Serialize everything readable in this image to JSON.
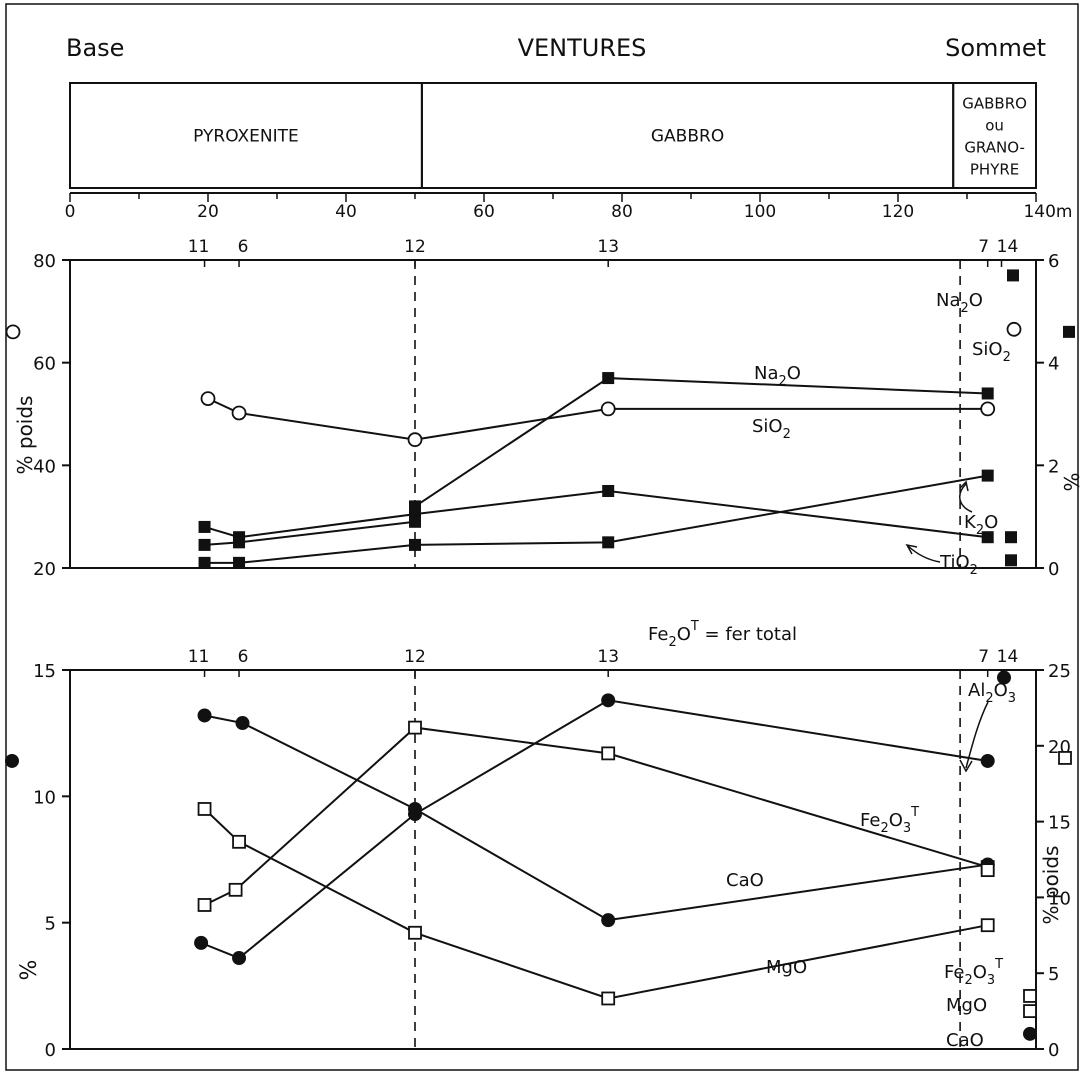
{
  "header": {
    "left": "Base",
    "center": "VENTURES",
    "right": "Sommet"
  },
  "units": [
    {
      "label_lines": [
        "PYROXENITE"
      ],
      "from_m": 0,
      "to_m": 51
    },
    {
      "label_lines": [
        "GABBRO"
      ],
      "from_m": 51,
      "to_m": 128
    },
    {
      "label_lines": [
        "GABBRO",
        "ou",
        "GRANO-",
        "PHYRE"
      ],
      "from_m": 128,
      "to_m": 140
    }
  ],
  "depth_axis": {
    "ticks": [
      0,
      20,
      40,
      60,
      80,
      100,
      120,
      140
    ],
    "tick_labels": [
      "0",
      "20",
      "40",
      "60",
      "80",
      "100",
      "120",
      "140m"
    ]
  },
  "samples": [
    {
      "label": "11",
      "m": 19.5
    },
    {
      "label": "6",
      "m": 24.5
    },
    {
      "label": "12",
      "m": 50
    },
    {
      "label": "13",
      "m": 78
    },
    {
      "label": "7",
      "m": 133
    },
    {
      "label": "14",
      "m": 135
    }
  ],
  "boundaries_m": [
    51,
    129
  ],
  "chart_data": [
    {
      "type": "line",
      "x_unit": "m",
      "xlim": [
        0,
        140
      ],
      "ylabel_left": "% poids",
      "ylim_left": [
        20,
        80
      ],
      "yticks_left": [
        20,
        40,
        60,
        80
      ],
      "ylabel_right": "%",
      "ylim_right": [
        0,
        6
      ],
      "yticks_right": [
        0,
        2,
        4,
        6
      ],
      "series": [
        {
          "name": "SiO2",
          "axis": "left",
          "marker": "open-circle",
          "x": [
            20,
            24.5,
            50,
            78,
            133
          ],
          "y": [
            53,
            50.2,
            45,
            51,
            51
          ],
          "outside_value": 66,
          "label_sub": {
            "base": "SiO",
            "sub": "2"
          }
        },
        {
          "name": "Na2O",
          "axis": "right",
          "marker": "filled-square",
          "x": [
            50,
            78,
            133
          ],
          "y": [
            1.2,
            3.7,
            3.4
          ],
          "outside_value": 4.6,
          "label_sub": {
            "base": "Na",
            "sub": "2",
            "tail": "O"
          }
        },
        {
          "name": "K2O",
          "axis": "right",
          "marker": "filled-square",
          "x": [
            19.5,
            24.5,
            50,
            78,
            133
          ],
          "y": [
            0.8,
            0.6,
            1.05,
            1.5,
            0.6
          ],
          "outside_value": 0.45,
          "label_sub": {
            "base": "K",
            "sub": "2",
            "tail": "O"
          }
        },
        {
          "name": "TiO2",
          "axis": "right",
          "marker": "filled-square",
          "x": [
            19.5,
            24.5,
            50,
            78,
            133
          ],
          "y": [
            0.1,
            0.1,
            0.45,
            0.5,
            1.8
          ],
          "outside_value": 0.2,
          "label_sub": {
            "base": "TiO",
            "sub": "2"
          }
        },
        {
          "name": "",
          "axis": "right",
          "marker": "filled-square",
          "x": [
            19.5,
            24.5,
            50
          ],
          "y": [
            0.45,
            0.5,
            0.9
          ]
        }
      ]
    },
    {
      "type": "line",
      "x_unit": "m",
      "xlim": [
        0,
        140
      ],
      "note": {
        "base": "Fe",
        "sub": "2",
        "mid": "O",
        "sup": "T",
        "tail": " = fer  total"
      },
      "ylabel_left": "%",
      "ylim_left": [
        0,
        15
      ],
      "yticks_left": [
        0,
        5,
        10,
        15
      ],
      "ylabel_right": "% poids",
      "ylim_right": [
        0,
        25
      ],
      "yticks_right": [
        0,
        5,
        10,
        15,
        20,
        25
      ],
      "series": [
        {
          "name": "Al2O3",
          "axis": "right",
          "marker": "filled-circle",
          "x": [
            19,
            24.5,
            50,
            78,
            133
          ],
          "y": [
            7,
            6,
            15.5,
            23,
            19
          ],
          "outside_value": 19,
          "label_sub": {
            "base": "Al",
            "sub": "2",
            "mid": "O",
            "sub2": "3"
          }
        },
        {
          "name": "Fe2O3T",
          "axis": "right",
          "marker": "open-square",
          "x": [
            19.5,
            24,
            50,
            78,
            133
          ],
          "y": [
            9.5,
            10.5,
            21.2,
            19.5,
            12
          ],
          "outside_value": 19.2,
          "label_sub": {
            "base": "Fe",
            "sub": "2",
            "mid": "O",
            "sub2": "3",
            "sup": "T"
          }
        },
        {
          "name": "CaO",
          "axis": "left",
          "marker": "filled-circle",
          "x": [
            19.5,
            25,
            50,
            78,
            133
          ],
          "y": [
            13.2,
            12.9,
            9.5,
            5.1,
            7.3
          ],
          "outside_value": 1,
          "label_sub": {
            "base": "CaO"
          }
        },
        {
          "name": "MgO",
          "axis": "left",
          "marker": "open-square",
          "x": [
            19.5,
            24.5,
            50,
            78,
            133
          ],
          "y": [
            9.5,
            8.2,
            4.6,
            2,
            4.9
          ],
          "outside_value": 1.5,
          "label_sub": {
            "base": "MgO"
          }
        }
      ],
      "extra_points": [
        {
          "series": "Fe2O3T",
          "axis": "right",
          "marker": "open-square",
          "x": 133,
          "y": 11.8
        }
      ],
      "legend_key": [
        {
          "marker": "open-square",
          "label_sub": {
            "base": "Fe",
            "sub": "2",
            "mid": "O",
            "sub2": "3",
            "sup": "T"
          },
          "value": 3.5
        },
        {
          "marker": "open-square",
          "label_sub": {
            "base": "MgO"
          },
          "value": 2.5
        },
        {
          "marker": "filled-circle",
          "label_sub": {
            "base": "CaO"
          },
          "value": 1
        }
      ]
    }
  ]
}
